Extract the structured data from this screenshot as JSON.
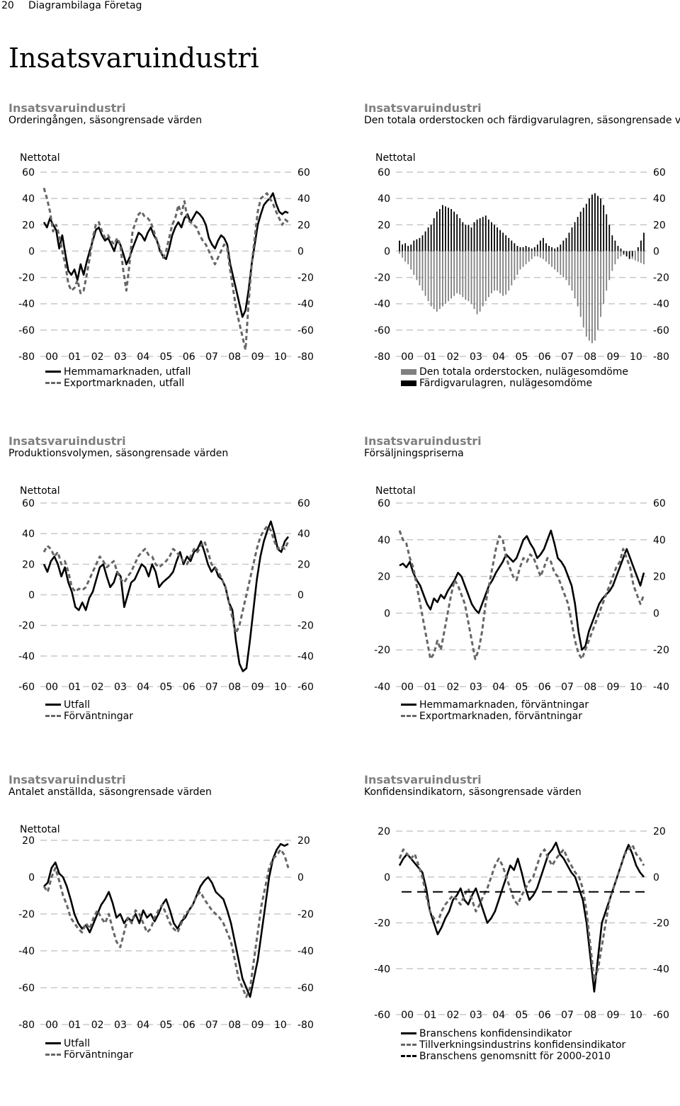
{
  "page": {
    "number": "20",
    "header": "Diagrambilaga Företag",
    "title": "Insatsvaruindustri"
  },
  "charts": [
    {
      "title": "Insatsvaruindustri",
      "subtitle": "Orderingången, säsongrensade värden",
      "ylabel": "Nettotal"
    },
    {
      "title": "Insatsvaruindustri",
      "subtitle": "Den totala orderstocken och färdigvarulagren, säsongrensade värden",
      "ylabel": "Nettotal"
    },
    {
      "title": "Insatsvaruindustri",
      "subtitle": "Produktionsvolymen, säsongrensade värden",
      "ylabel": "Nettotal"
    },
    {
      "title": "Insatsvaruindustri",
      "subtitle": "Försäljningspriserna",
      "ylabel": "Nettotal"
    },
    {
      "title": "Insatsvaruindustri",
      "subtitle": "Antalet anställda, säsongrensade värden",
      "ylabel": "Nettotal"
    },
    {
      "title": "Insatsvaruindustri",
      "subtitle": "Konfidensindikatorn, säsongrensade värden",
      "ylabel": ""
    }
  ],
  "chart_data": [
    {
      "type": "line",
      "ylim": [
        -80,
        60
      ],
      "yticks": [
        60,
        40,
        20,
        0,
        -20,
        -40,
        -60,
        -80
      ],
      "xticks": [
        "00",
        "01",
        "02",
        "03",
        "04",
        "05",
        "06",
        "07",
        "08",
        "09",
        "10"
      ],
      "grid": true,
      "legend": "bottom",
      "series": [
        {
          "name": "Hemmamarknaden, utfall",
          "style": "solid",
          "color": "#000000",
          "values": [
            22,
            18,
            25,
            20,
            16,
            2,
            12,
            -2,
            -15,
            -18,
            -14,
            -22,
            -10,
            -18,
            -8,
            0,
            8,
            16,
            18,
            12,
            8,
            10,
            5,
            0,
            8,
            5,
            -2,
            -10,
            -5,
            2,
            8,
            14,
            12,
            8,
            14,
            18,
            12,
            8,
            0,
            -4,
            -6,
            2,
            12,
            18,
            22,
            18,
            25,
            28,
            22,
            26,
            30,
            28,
            25,
            20,
            10,
            5,
            2,
            8,
            12,
            10,
            5,
            -10,
            -20,
            -30,
            -40,
            -50,
            -45,
            -30,
            -10,
            5,
            20,
            28,
            35,
            38,
            40,
            44,
            36,
            30,
            28,
            30,
            29
          ]
        },
        {
          "name": "Exportmarknaden, utfall",
          "style": "dashed",
          "color": "#666666",
          "values": [
            48,
            40,
            30,
            15,
            20,
            12,
            0,
            -10,
            -25,
            -30,
            -28,
            -22,
            -32,
            -30,
            -18,
            -5,
            10,
            20,
            22,
            15,
            10,
            12,
            8,
            5,
            10,
            5,
            -15,
            -30,
            -10,
            15,
            22,
            28,
            30,
            26,
            25,
            22,
            15,
            8,
            2,
            -5,
            0,
            10,
            20,
            25,
            35,
            28,
            38,
            24,
            22,
            20,
            18,
            12,
            8,
            5,
            0,
            -5,
            -10,
            -5,
            0,
            5,
            2,
            -15,
            -30,
            -45,
            -55,
            -65,
            -75,
            -40,
            -10,
            10,
            30,
            40,
            42,
            44,
            40,
            36,
            30,
            25,
            20,
            24,
            22
          ]
        }
      ]
    },
    {
      "type": "bar",
      "ylim": [
        -80,
        60
      ],
      "yticks": [
        60,
        40,
        20,
        0,
        -20,
        -40,
        -60,
        -80
      ],
      "xticks": [
        "00",
        "01",
        "02",
        "03",
        "04",
        "05",
        "06",
        "07",
        "08",
        "09",
        "10"
      ],
      "grid": true,
      "legend": "bottom",
      "series": [
        {
          "name": "Den totala orderstocken, nulägesomdöme",
          "color": "#808080",
          "values": [
            -2,
            -5,
            -8,
            -10,
            -14,
            -18,
            -22,
            -26,
            -30,
            -34,
            -38,
            -42,
            -44,
            -46,
            -44,
            -42,
            -40,
            -38,
            -36,
            -34,
            -32,
            -33,
            -35,
            -37,
            -38,
            -40,
            -44,
            -48,
            -46,
            -42,
            -38,
            -35,
            -32,
            -30,
            -30,
            -32,
            -34,
            -33,
            -30,
            -26,
            -22,
            -18,
            -14,
            -12,
            -10,
            -8,
            -6,
            -4,
            -4,
            -5,
            -6,
            -8,
            -10,
            -12,
            -14,
            -16,
            -18,
            -20,
            -22,
            -26,
            -30,
            -36,
            -42,
            -50,
            -58,
            -65,
            -68,
            -70,
            -68,
            -60,
            -50,
            -40,
            -30,
            -22,
            -15,
            -10,
            -6,
            -4,
            -3,
            -4,
            -5,
            -6,
            -7,
            -8,
            -9,
            -10
          ]
        },
        {
          "name": "Färdigvarulagren, nulägesomdöme",
          "color": "#000000",
          "values": [
            8,
            5,
            6,
            4,
            5,
            8,
            9,
            10,
            12,
            15,
            18,
            20,
            25,
            30,
            32,
            35,
            34,
            33,
            32,
            30,
            28,
            25,
            22,
            20,
            20,
            18,
            22,
            24,
            25,
            26,
            27,
            24,
            22,
            20,
            18,
            16,
            14,
            12,
            10,
            8,
            6,
            4,
            3,
            3,
            4,
            3,
            2,
            3,
            5,
            8,
            10,
            6,
            4,
            3,
            2,
            3,
            5,
            8,
            10,
            14,
            18,
            22,
            26,
            30,
            33,
            36,
            40,
            43,
            44,
            42,
            40,
            35,
            28,
            20,
            12,
            8,
            4,
            2,
            -2,
            -4,
            -6,
            -4,
            0,
            3,
            8,
            14
          ]
        }
      ]
    },
    {
      "type": "line",
      "ylim": [
        -60,
        60
      ],
      "yticks": [
        60,
        40,
        20,
        0,
        -20,
        -40,
        -60
      ],
      "xticks": [
        "00",
        "01",
        "02",
        "03",
        "04",
        "05",
        "06",
        "07",
        "08",
        "09",
        "10"
      ],
      "grid": true,
      "legend": "bottom",
      "series": [
        {
          "name": "Utfall",
          "style": "solid",
          "color": "#000000",
          "values": [
            20,
            15,
            22,
            25,
            20,
            12,
            18,
            8,
            2,
            -8,
            -10,
            -5,
            -10,
            -2,
            2,
            10,
            18,
            20,
            12,
            5,
            8,
            15,
            12,
            -8,
            0,
            8,
            10,
            15,
            20,
            18,
            12,
            20,
            15,
            5,
            8,
            10,
            12,
            15,
            22,
            28,
            20,
            25,
            22,
            28,
            30,
            35,
            28,
            20,
            15,
            18,
            12,
            10,
            5,
            -5,
            -10,
            -30,
            -45,
            -50,
            -48,
            -30,
            -10,
            10,
            25,
            35,
            42,
            48,
            40,
            30,
            28,
            35,
            38
          ]
        },
        {
          "name": "Förväntningar",
          "style": "dashed",
          "color": "#666666",
          "values": [
            28,
            32,
            30,
            25,
            28,
            20,
            22,
            15,
            5,
            2,
            4,
            3,
            5,
            10,
            15,
            20,
            25,
            22,
            18,
            20,
            22,
            15,
            10,
            8,
            12,
            15,
            20,
            25,
            28,
            30,
            26,
            25,
            20,
            18,
            20,
            22,
            25,
            30,
            28,
            25,
            22,
            20,
            25,
            30,
            28,
            32,
            35,
            28,
            20,
            18,
            15,
            10,
            5,
            -5,
            -15,
            -25,
            -20,
            -10,
            0,
            10,
            20,
            30,
            38,
            42,
            45,
            42,
            35,
            30,
            32,
            30,
            35
          ]
        }
      ]
    },
    {
      "type": "line",
      "ylim": [
        -40,
        60
      ],
      "yticks": [
        60,
        40,
        20,
        0,
        -20,
        -40
      ],
      "xticks": [
        "00",
        "01",
        "02",
        "03",
        "04",
        "05",
        "06",
        "07",
        "08",
        "09",
        "10"
      ],
      "grid": true,
      "legend": "bottom",
      "series": [
        {
          "name": "Hemmamarknaden, förväntningar",
          "style": "solid",
          "color": "#000000",
          "values": [
            26,
            27,
            25,
            28,
            22,
            18,
            15,
            10,
            5,
            2,
            8,
            6,
            10,
            8,
            12,
            15,
            18,
            22,
            20,
            15,
            10,
            5,
            2,
            0,
            5,
            10,
            15,
            18,
            22,
            25,
            28,
            32,
            30,
            28,
            30,
            35,
            40,
            42,
            38,
            35,
            30,
            32,
            35,
            40,
            45,
            38,
            30,
            28,
            25,
            20,
            15,
            5,
            -10,
            -20,
            -18,
            -10,
            -5,
            0,
            5,
            8,
            10,
            12,
            15,
            20,
            25,
            30,
            35,
            30,
            25,
            20,
            15,
            22
          ]
        },
        {
          "name": "Exportmarknaden, förväntningar",
          "style": "dashed",
          "color": "#666666",
          "values": [
            45,
            40,
            38,
            30,
            25,
            15,
            5,
            -5,
            -15,
            -25,
            -22,
            -15,
            -20,
            -10,
            0,
            10,
            18,
            15,
            10,
            5,
            -5,
            -15,
            -25,
            -20,
            -10,
            5,
            15,
            25,
            35,
            42,
            40,
            30,
            25,
            20,
            18,
            25,
            30,
            28,
            32,
            30,
            25,
            20,
            25,
            30,
            28,
            22,
            20,
            15,
            10,
            5,
            -5,
            -15,
            -22,
            -25,
            -20,
            -15,
            -10,
            -5,
            0,
            5,
            10,
            15,
            20,
            25,
            28,
            35,
            30,
            25,
            15,
            10,
            5,
            10
          ]
        }
      ]
    },
    {
      "type": "line",
      "ylim": [
        -80,
        20
      ],
      "yticks": [
        20,
        0,
        -20,
        -40,
        -60,
        -80
      ],
      "xticks": [
        "00",
        "01",
        "02",
        "03",
        "04",
        "05",
        "06",
        "07",
        "08",
        "09",
        "10"
      ],
      "grid": true,
      "legend": "bottom",
      "series": [
        {
          "name": "Utfall",
          "style": "solid",
          "color": "#000000",
          "values": [
            -5,
            -3,
            5,
            8,
            2,
            0,
            -5,
            -12,
            -20,
            -25,
            -28,
            -26,
            -30,
            -25,
            -20,
            -15,
            -12,
            -8,
            -14,
            -22,
            -20,
            -25,
            -22,
            -24,
            -20,
            -25,
            -18,
            -22,
            -20,
            -24,
            -20,
            -15,
            -12,
            -18,
            -25,
            -28,
            -24,
            -22,
            -18,
            -15,
            -10,
            -5,
            -2,
            0,
            -3,
            -8,
            -10,
            -12,
            -18,
            -25,
            -35,
            -45,
            -55,
            -60,
            -65,
            -55,
            -45,
            -30,
            -15,
            0,
            10,
            15,
            18,
            17,
            18
          ]
        },
        {
          "name": "Förväntningar",
          "style": "dashed",
          "color": "#666666",
          "values": [
            -5,
            -8,
            0,
            5,
            -2,
            -10,
            -15,
            -22,
            -25,
            -28,
            -30,
            -25,
            -28,
            -22,
            -18,
            -22,
            -25,
            -20,
            -28,
            -35,
            -38,
            -30,
            -22,
            -25,
            -18,
            -20,
            -25,
            -30,
            -28,
            -22,
            -18,
            -15,
            -20,
            -25,
            -28,
            -30,
            -25,
            -20,
            -18,
            -15,
            -10,
            -8,
            -12,
            -15,
            -18,
            -20,
            -22,
            -25,
            -30,
            -35,
            -45,
            -55,
            -60,
            -65,
            -60,
            -45,
            -30,
            -15,
            -5,
            5,
            10,
            12,
            15,
            12,
            5
          ]
        }
      ]
    },
    {
      "type": "line",
      "ylim": [
        -60,
        20
      ],
      "yticks": [
        20,
        0,
        -20,
        -40,
        -60
      ],
      "xticks": [
        "00",
        "01",
        "02",
        "03",
        "04",
        "05",
        "06",
        "07",
        "08",
        "09",
        "10"
      ],
      "grid": true,
      "legend": "bottom",
      "series": [
        {
          "name": "Branschens konfidensindikator",
          "style": "solid",
          "color": "#000000",
          "values": [
            5,
            8,
            10,
            8,
            6,
            4,
            2,
            -5,
            -15,
            -20,
            -25,
            -22,
            -18,
            -15,
            -10,
            -8,
            -5,
            -10,
            -12,
            -8,
            -5,
            -10,
            -15,
            -20,
            -18,
            -15,
            -10,
            -5,
            0,
            5,
            3,
            8,
            2,
            -5,
            -10,
            -8,
            -5,
            0,
            5,
            10,
            12,
            15,
            10,
            8,
            5,
            2,
            0,
            -5,
            -10,
            -20,
            -35,
            -50,
            -35,
            -20,
            -15,
            -10,
            -5,
            0,
            5,
            10,
            14,
            10,
            5,
            2,
            0
          ]
        },
        {
          "name": "Tillverkningsindustrins konfidensindikator",
          "style": "dashed",
          "color": "#666666",
          "values": [
            8,
            12,
            10,
            8,
            10,
            5,
            0,
            -8,
            -15,
            -18,
            -20,
            -15,
            -12,
            -10,
            -8,
            -10,
            -12,
            -8,
            -5,
            -10,
            -15,
            -12,
            -8,
            -5,
            0,
            5,
            8,
            5,
            0,
            -5,
            -10,
            -12,
            -8,
            -5,
            -2,
            0,
            5,
            10,
            12,
            8,
            5,
            8,
            10,
            12,
            8,
            5,
            2,
            0,
            -5,
            -15,
            -30,
            -45,
            -40,
            -30,
            -20,
            -10,
            -5,
            0,
            5,
            10,
            12,
            14,
            10,
            8,
            5
          ]
        },
        {
          "name": "Branschens genomsnitt för 2000-2010",
          "style": "longdash",
          "color": "#000000",
          "constant": -6.5
        }
      ]
    }
  ]
}
